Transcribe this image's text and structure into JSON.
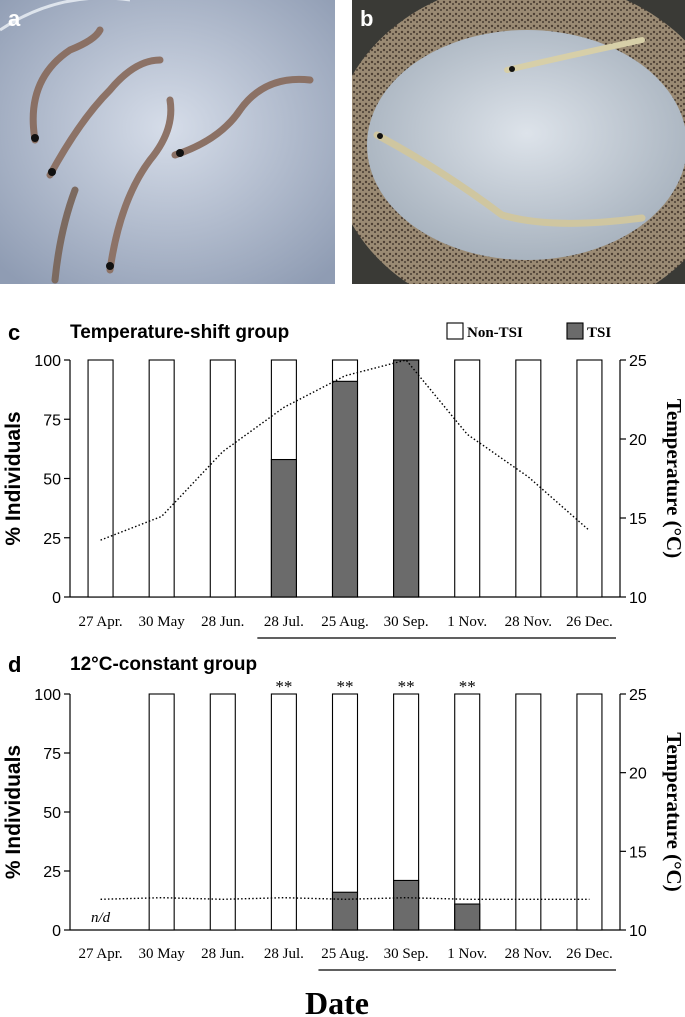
{
  "photos": {
    "a": {
      "label": "a"
    },
    "b": {
      "label": "b"
    }
  },
  "colors": {
    "tsi": "#6b6b6b",
    "non_tsi": "#ffffff",
    "outline": "#000000",
    "photo_a_bg": "#b9c3d6",
    "photo_b_bg": "#c9d1db",
    "sand": "#6b5b49"
  },
  "chart_data": [
    {
      "panel": "c",
      "type": "bar",
      "title": "Temperature-shift group",
      "legend": [
        {
          "name": "Non-TSI",
          "color": "#ffffff"
        },
        {
          "name": "TSI",
          "color": "#6b6b6b"
        }
      ],
      "legend_position": "top-right",
      "categories": [
        "27 Apr.",
        "30 May",
        "28 Jun.",
        "28 Jul.",
        "25 Aug.",
        "30 Sep.",
        "1 Nov.",
        "28 Nov.",
        "26 Dec."
      ],
      "series": [
        {
          "name": "TSI",
          "values": [
            0,
            0,
            0,
            58,
            91,
            100,
            0,
            0,
            0
          ]
        },
        {
          "name": "Non-TSI",
          "values": [
            100,
            100,
            100,
            42,
            9,
            0,
            100,
            100,
            100
          ]
        }
      ],
      "ylabel": "% Individuals",
      "ylim": [
        0,
        100
      ],
      "yticks": [
        "0",
        "25",
        "50",
        "75",
        "100"
      ],
      "y2label": "Temperature (°C)",
      "y2lim": [
        10,
        25
      ],
      "y2ticks": [
        "10",
        "15",
        "20",
        "25"
      ],
      "temperature_line": [
        13.6,
        15.1,
        19.2,
        22.0,
        24.0,
        25.0,
        20.3,
        17.6,
        14.2
      ],
      "underline_from": "28 Jul.",
      "underline_to": "26 Dec.",
      "annotations": [],
      "grid": false
    },
    {
      "panel": "d",
      "type": "bar",
      "title": "12°C-constant group",
      "categories": [
        "27 Apr.",
        "30 May",
        "28 Jun.",
        "28 Jul.",
        "25 Aug.",
        "30 Sep.",
        "1 Nov.",
        "28 Nov.",
        "26 Dec."
      ],
      "series": [
        {
          "name": "TSI",
          "values": [
            null,
            0,
            0,
            0,
            16,
            21,
            11,
            0,
            0
          ]
        },
        {
          "name": "Non-TSI",
          "values": [
            null,
            100,
            100,
            100,
            84,
            79,
            89,
            100,
            100
          ]
        }
      ],
      "ylabel": "% Individuals",
      "ylim": [
        0,
        100
      ],
      "yticks": [
        "0",
        "25",
        "50",
        "75",
        "100"
      ],
      "y2label": "Temperature (°C)",
      "y2lim": [
        10,
        25
      ],
      "y2ticks": [
        "10",
        "15",
        "20",
        "25"
      ],
      "temperature_line": [
        11.95,
        12.05,
        11.95,
        12.05,
        11.95,
        12.05,
        11.95,
        11.95,
        11.95
      ],
      "underline_from": "25 Aug.",
      "underline_to": "26 Dec.",
      "annotations": [
        {
          "category": "27 Apr.",
          "text": "n/d"
        },
        {
          "category": "28 Jul.",
          "text": "**"
        },
        {
          "category": "25 Aug.",
          "text": "**"
        },
        {
          "category": "30 Sep.",
          "text": "**"
        },
        {
          "category": "1 Nov.",
          "text": "**"
        }
      ],
      "grid": false
    }
  ],
  "xlabel": "Date"
}
